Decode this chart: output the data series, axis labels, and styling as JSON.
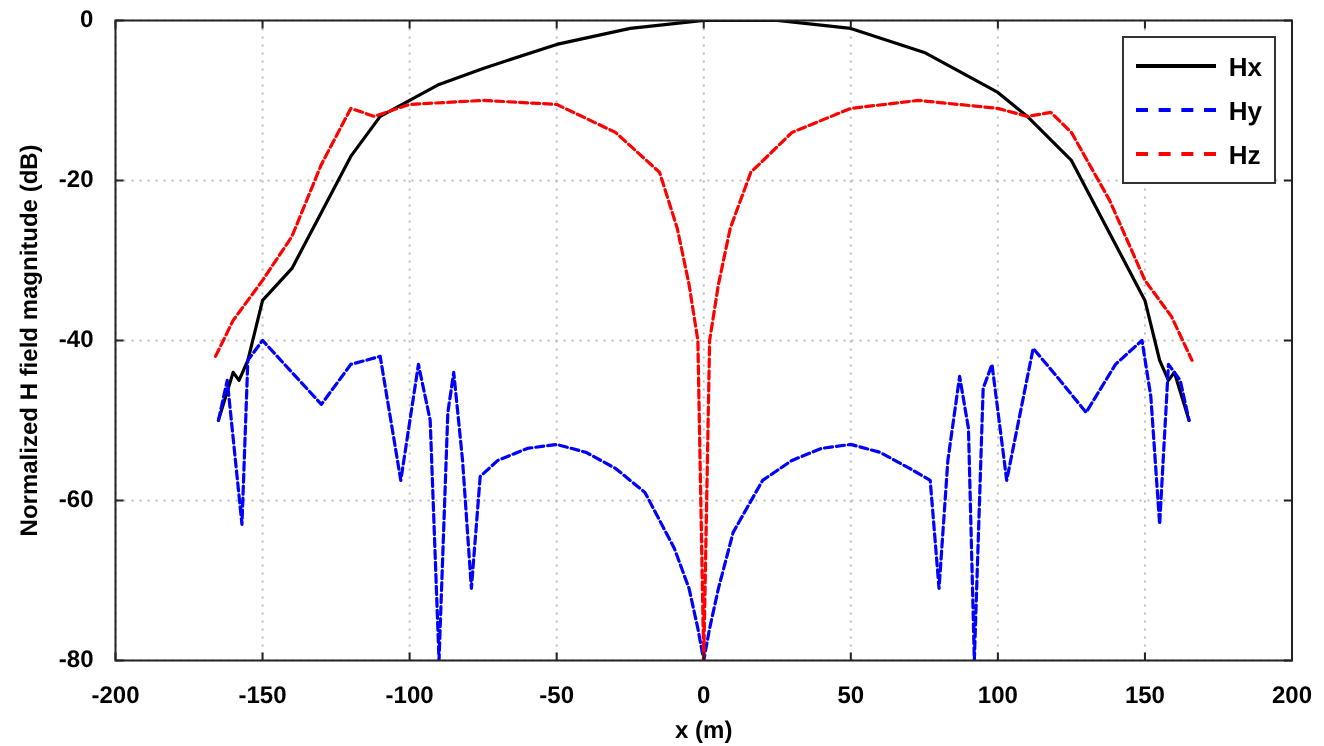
{
  "chart_data": {
    "type": "line",
    "xlabel": "x (m)",
    "ylabel": "Normalized H field magnitude (dB)",
    "xlim": [
      -200,
      200
    ],
    "xticks": [
      -200,
      -150,
      -100,
      -50,
      0,
      50,
      100,
      150,
      200
    ],
    "ylim": [
      -80,
      0
    ],
    "yticks": [
      -80,
      -60,
      -40,
      -20,
      0
    ],
    "grid": true,
    "legend": "top right",
    "marker": "none",
    "series": [
      {
        "name": "Hx",
        "color": "#000000",
        "line_style": "solid",
        "x": [
          -165,
          -160,
          -158,
          -155,
          -150,
          -140,
          -130,
          -120,
          -110,
          -100,
          -90,
          -75,
          -50,
          -25,
          0,
          25,
          50,
          75,
          100,
          110,
          125,
          140,
          150,
          155,
          158,
          160,
          165
        ],
        "values": [
          -50,
          -44,
          -45,
          -42.5,
          -35,
          -31,
          -24,
          -17,
          -12,
          -10,
          -8,
          -6,
          -3,
          -1,
          0,
          0,
          -1,
          -4,
          -9,
          -12,
          -17.5,
          -28,
          -35,
          -42.5,
          -45,
          -44,
          -50
        ]
      },
      {
        "name": "Hy",
        "color": "#0000ff",
        "line_style": "dashed",
        "x": [
          -165,
          -162,
          -157,
          -155,
          -150,
          -140,
          -130,
          -120,
          -110,
          -103,
          -97,
          -93,
          -90,
          -87,
          -85,
          -82,
          -79,
          -76,
          -70,
          -60,
          -50,
          -40,
          -30,
          -20,
          -10,
          -5,
          -2,
          0,
          2,
          5,
          10,
          20,
          30,
          40,
          50,
          60,
          70,
          77,
          80,
          83,
          87,
          90,
          92,
          95,
          98,
          103,
          112,
          120,
          130,
          140,
          149,
          152,
          155,
          158,
          162,
          165
        ],
        "values": [
          -50,
          -45,
          -63,
          -42.5,
          -40,
          -44,
          -48,
          -43,
          -42,
          -57.5,
          -43,
          -50,
          -80,
          -49,
          -44,
          -55,
          -71,
          -57,
          -55,
          -53.5,
          -53,
          -54,
          -56,
          -59,
          -66,
          -71,
          -76,
          -80,
          -76,
          -71,
          -64,
          -57.5,
          -55,
          -53.5,
          -53,
          -54,
          -56,
          -57.5,
          -71,
          -55,
          -44.5,
          -51,
          -80,
          -46,
          -43,
          -57.5,
          -41,
          -44.5,
          -49,
          -43,
          -40,
          -47,
          -63,
          -43,
          -45,
          -50
        ]
      },
      {
        "name": "Hz",
        "color": "#ff0000",
        "line_style": "dashed",
        "x": [
          -166,
          -160,
          -150,
          -140,
          -130,
          -120,
          -112,
          -100,
          -75,
          -50,
          -30,
          -15,
          -9,
          -5,
          -2,
          -1,
          0,
          1,
          2,
          5,
          9,
          16,
          30,
          50,
          73,
          100,
          110,
          118,
          125,
          138,
          150,
          159,
          166
        ],
        "values": [
          -42,
          -37.5,
          -32.5,
          -27,
          -18,
          -11,
          -12,
          -10.5,
          -10,
          -10.5,
          -14,
          -19,
          -26,
          -33,
          -40,
          -60,
          -80,
          -60,
          -40,
          -33,
          -26,
          -19,
          -14,
          -11,
          -10,
          -11,
          -12,
          -11.5,
          -14,
          -22.5,
          -32.5,
          -37,
          -42.5
        ]
      }
    ]
  }
}
